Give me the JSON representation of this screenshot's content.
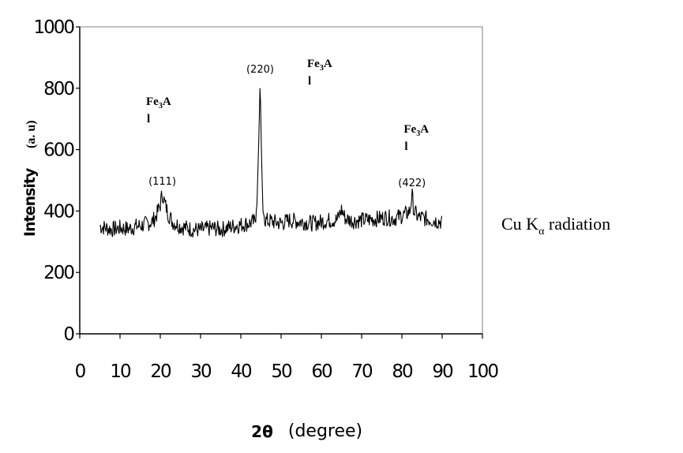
{
  "chart_data": {
    "type": "line",
    "ylabel": "Intensity",
    "ylabel_unit": "(a. u)",
    "xlabel_symbol": "2θ",
    "xlabel_unit": "(degree)",
    "xlim": [
      0,
      100
    ],
    "ylim": [
      0,
      1000
    ],
    "x_ticks": [
      "0",
      "10",
      "20",
      "30",
      "40",
      "50",
      "60",
      "70",
      "80",
      "90",
      "100"
    ],
    "y_ticks": [
      "0",
      "200",
      "400",
      "600",
      "800",
      "1000"
    ],
    "grid": false,
    "legend": "none",
    "line_color": "#000000",
    "peak_labels": [
      {
        "text": "(111)",
        "x": 20.5,
        "y": 470
      },
      {
        "text": "(220)",
        "x": 44.8,
        "y": 835
      },
      {
        "text": "(422)",
        "x": 82.5,
        "y": 465
      }
    ],
    "phase_labels": [
      {
        "main": "Fe",
        "sub": "3",
        "rest": "A",
        "tail": "l",
        "x": 20
      },
      {
        "main": "Fe",
        "sub": "3",
        "rest": "A",
        "tail": "l",
        "x": 60
      },
      {
        "main": "Fe",
        "sub": "3",
        "rest": "A",
        "tail": "l",
        "x": 84
      }
    ],
    "series": [
      {
        "x": [
          5,
          8,
          10,
          12,
          14,
          16,
          18,
          19,
          20,
          20.5,
          21,
          22,
          23,
          25,
          28,
          30,
          33,
          35,
          38,
          40,
          42,
          43.5,
          44,
          44.5,
          44.8,
          45.1,
          45.5,
          46,
          48,
          50,
          52,
          55,
          58,
          60,
          62,
          64,
          65,
          66,
          68,
          70,
          72,
          74,
          76,
          78,
          80,
          81,
          82,
          82.5,
          83,
          84,
          86,
          88,
          90
        ],
        "y": [
          350,
          340,
          345,
          342,
          350,
          355,
          365,
          385,
          420,
          460,
          430,
          390,
          365,
          350,
          340,
          338,
          345,
          340,
          350,
          355,
          360,
          365,
          420,
          650,
          830,
          600,
          400,
          370,
          365,
          360,
          370,
          365,
          360,
          365,
          370,
          372,
          405,
          375,
          368,
          370,
          372,
          375,
          380,
          375,
          385,
          390,
          400,
          455,
          400,
          380,
          375,
          370,
          365
        ]
      }
    ]
  },
  "annotation": {
    "text_main": "Cu K",
    "text_sub": "α",
    "text_rest": " radiation"
  }
}
